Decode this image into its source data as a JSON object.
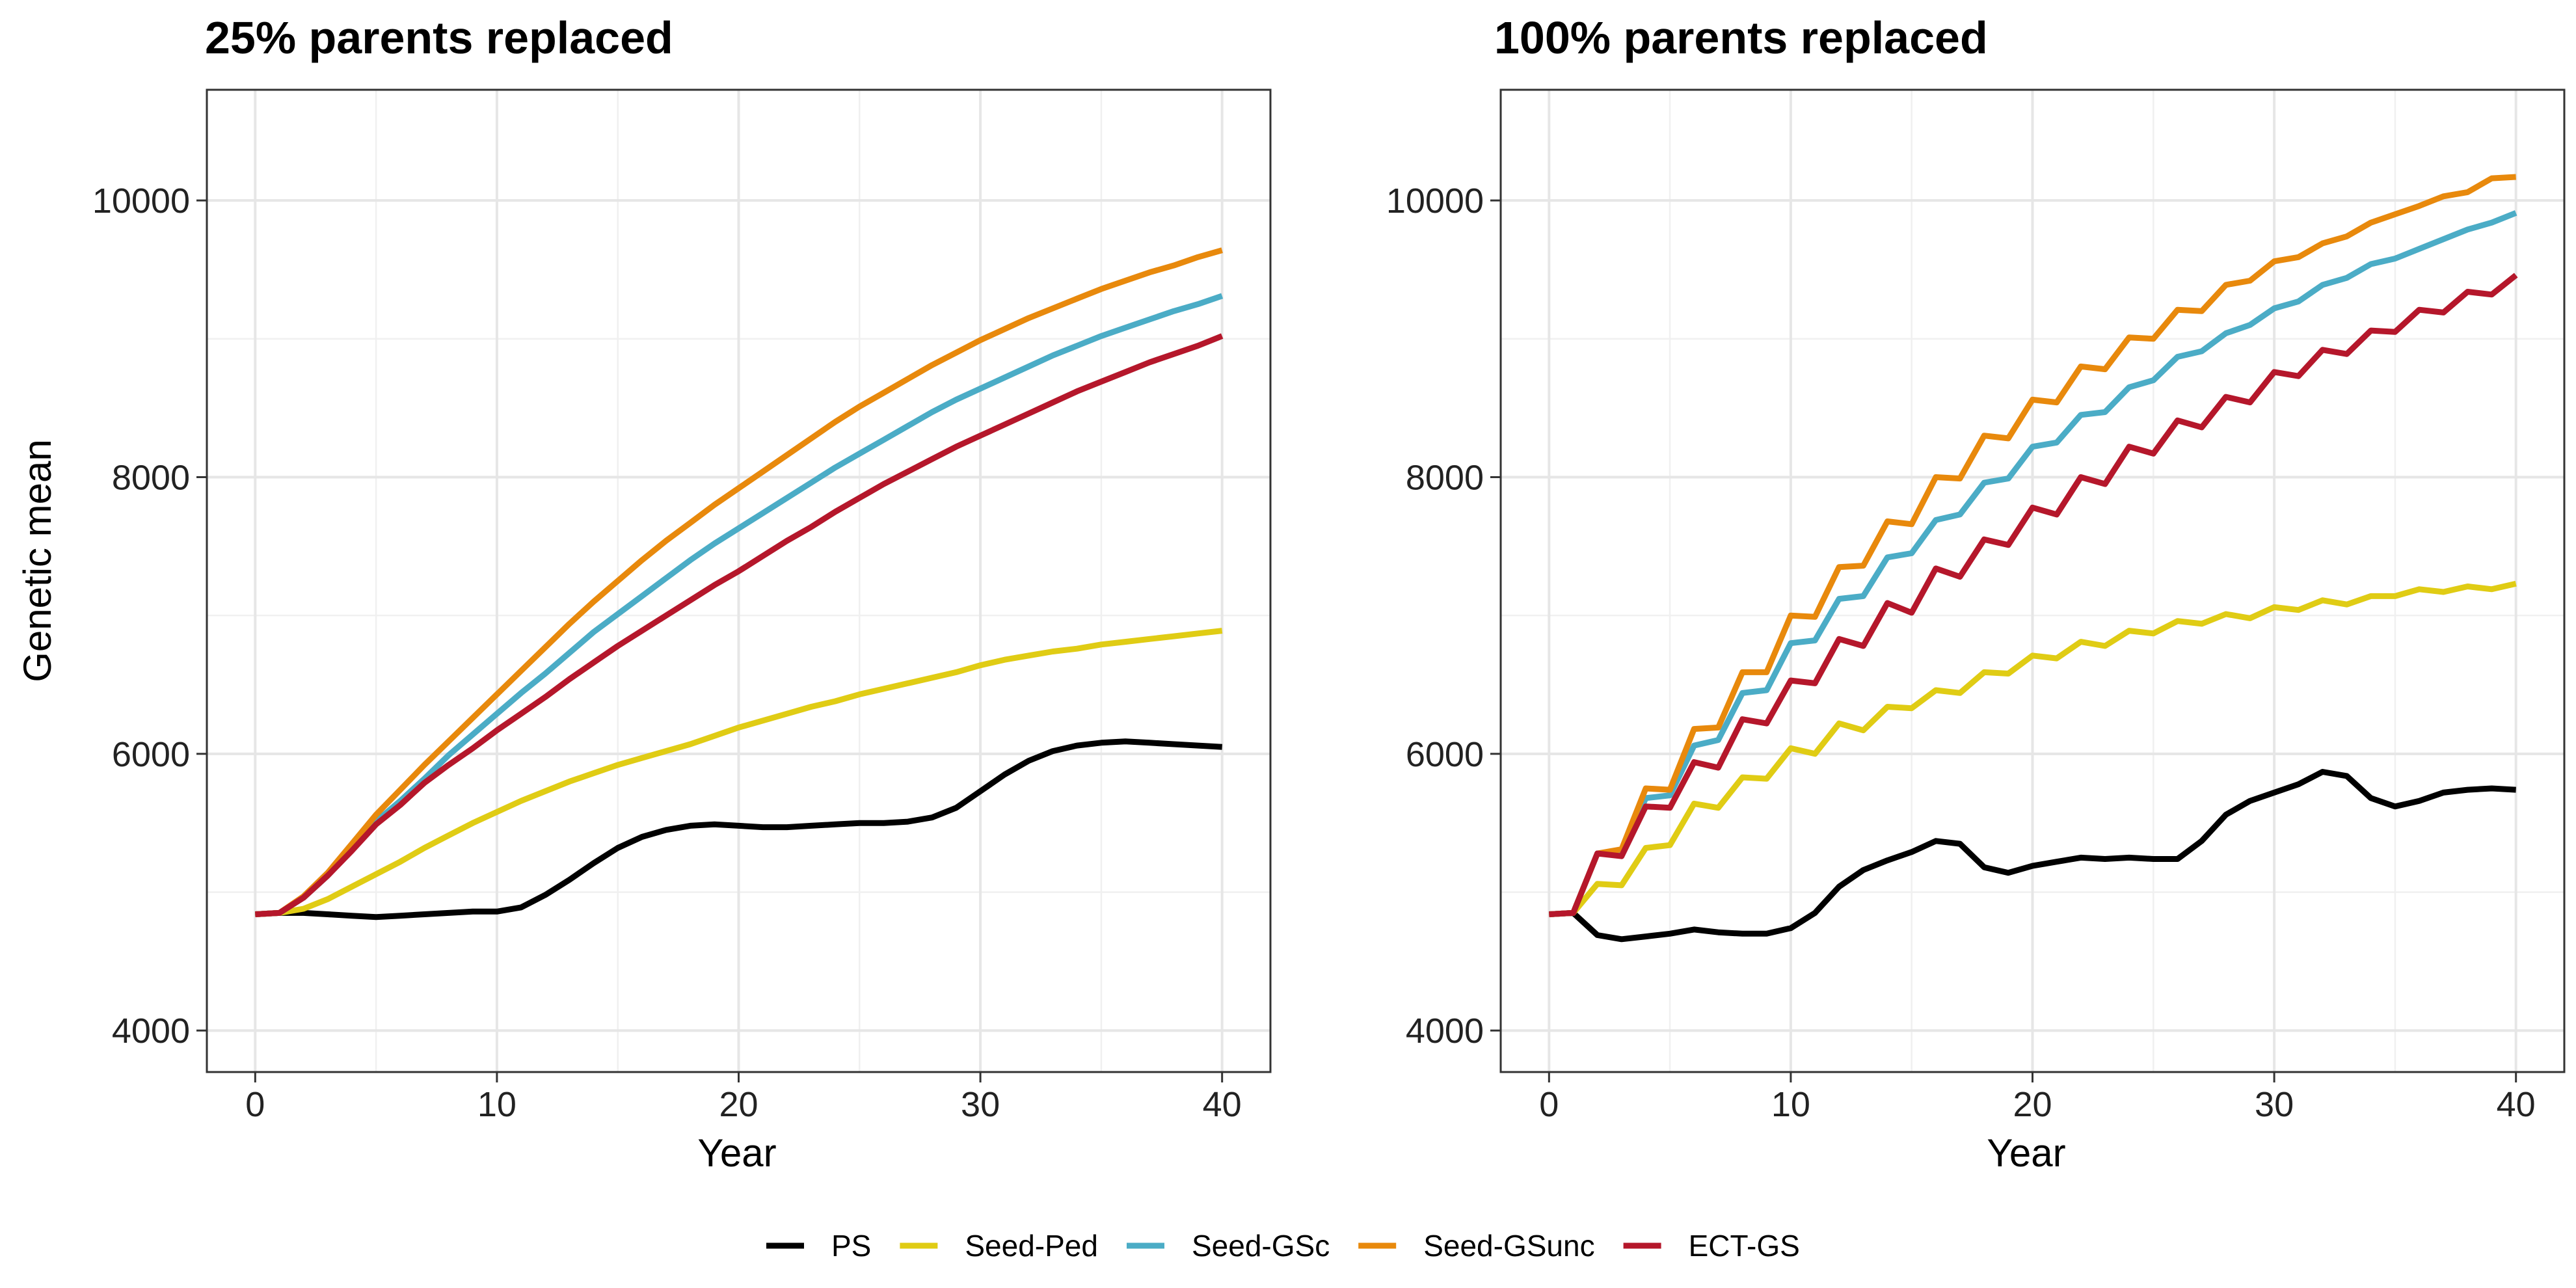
{
  "chart_data": [
    {
      "type": "line",
      "title": "25% parents replaced",
      "xlabel": "Year",
      "ylabel": "Genetic mean",
      "xlim": [
        -2,
        42
      ],
      "ylim": [
        3700,
        10800
      ],
      "xticks": [
        0,
        10,
        20,
        30,
        40
      ],
      "yticks": [
        4000,
        6000,
        8000,
        10000
      ],
      "grid": true,
      "legend": "bottom",
      "series": [
        {
          "name": "PS",
          "color": "#000000",
          "x": [
            0,
            1,
            2,
            3,
            4,
            5,
            6,
            7,
            8,
            9,
            10,
            11,
            12,
            13,
            14,
            15,
            16,
            17,
            18,
            19,
            20,
            21,
            22,
            23,
            24,
            25,
            26,
            27,
            28,
            29,
            30,
            31,
            32,
            33,
            34,
            35,
            36,
            37,
            38,
            39,
            40
          ],
          "values": [
            4840,
            4850,
            4850,
            4840,
            4830,
            4820,
            4830,
            4840,
            4850,
            4860,
            4860,
            4890,
            4980,
            5090,
            5210,
            5320,
            5400,
            5450,
            5480,
            5490,
            5480,
            5470,
            5470,
            5480,
            5490,
            5500,
            5500,
            5510,
            5540,
            5610,
            5730,
            5850,
            5950,
            6020,
            6060,
            6080,
            6090,
            6080,
            6070,
            6060,
            6050
          ]
        },
        {
          "name": "Seed-Ped",
          "color": "#E0CC14",
          "x": [
            0,
            1,
            2,
            3,
            4,
            5,
            6,
            7,
            8,
            9,
            10,
            11,
            12,
            13,
            14,
            15,
            16,
            17,
            18,
            19,
            20,
            21,
            22,
            23,
            24,
            25,
            26,
            27,
            28,
            29,
            30,
            31,
            32,
            33,
            34,
            35,
            36,
            37,
            38,
            39,
            40
          ],
          "values": [
            4840,
            4850,
            4880,
            4950,
            5040,
            5130,
            5220,
            5320,
            5410,
            5500,
            5580,
            5660,
            5730,
            5800,
            5860,
            5920,
            5970,
            6020,
            6070,
            6130,
            6190,
            6240,
            6290,
            6340,
            6380,
            6430,
            6470,
            6510,
            6550,
            6590,
            6640,
            6680,
            6710,
            6740,
            6760,
            6790,
            6810,
            6830,
            6850,
            6870,
            6890
          ]
        },
        {
          "name": "Seed-GSc",
          "color": "#4BACC6",
          "x": [
            0,
            1,
            2,
            3,
            4,
            5,
            6,
            7,
            8,
            9,
            10,
            11,
            12,
            13,
            14,
            15,
            16,
            17,
            18,
            19,
            20,
            21,
            22,
            23,
            24,
            25,
            26,
            27,
            28,
            29,
            30,
            31,
            32,
            33,
            34,
            35,
            36,
            37,
            38,
            39,
            40
          ],
          "values": [
            4840,
            4850,
            4960,
            5120,
            5310,
            5510,
            5660,
            5820,
            5990,
            6140,
            6290,
            6440,
            6580,
            6730,
            6880,
            7010,
            7140,
            7270,
            7400,
            7520,
            7630,
            7740,
            7850,
            7960,
            8070,
            8170,
            8270,
            8370,
            8470,
            8560,
            8640,
            8720,
            8800,
            8880,
            8950,
            9020,
            9080,
            9140,
            9200,
            9250,
            9310
          ]
        },
        {
          "name": "Seed-GSunc",
          "color": "#E8890C",
          "x": [
            0,
            1,
            2,
            3,
            4,
            5,
            6,
            7,
            8,
            9,
            10,
            11,
            12,
            13,
            14,
            15,
            16,
            17,
            18,
            19,
            20,
            21,
            22,
            23,
            24,
            25,
            26,
            27,
            28,
            29,
            30,
            31,
            32,
            33,
            34,
            35,
            36,
            37,
            38,
            39,
            40
          ],
          "values": [
            4840,
            4850,
            4970,
            5140,
            5350,
            5560,
            5740,
            5920,
            6090,
            6260,
            6430,
            6600,
            6770,
            6940,
            7100,
            7250,
            7400,
            7540,
            7670,
            7800,
            7920,
            8040,
            8160,
            8280,
            8400,
            8510,
            8610,
            8710,
            8810,
            8900,
            8990,
            9070,
            9150,
            9220,
            9290,
            9360,
            9420,
            9480,
            9530,
            9590,
            9640
          ]
        },
        {
          "name": "ECT-GS",
          "color": "#B5172B",
          "x": [
            0,
            1,
            2,
            3,
            4,
            5,
            6,
            7,
            8,
            9,
            10,
            11,
            12,
            13,
            14,
            15,
            16,
            17,
            18,
            19,
            20,
            21,
            22,
            23,
            24,
            25,
            26,
            27,
            28,
            29,
            30,
            31,
            32,
            33,
            34,
            35,
            36,
            37,
            38,
            39,
            40
          ],
          "values": [
            4840,
            4850,
            4960,
            5120,
            5300,
            5490,
            5630,
            5790,
            5920,
            6040,
            6170,
            6290,
            6410,
            6540,
            6660,
            6780,
            6890,
            7000,
            7110,
            7220,
            7320,
            7430,
            7540,
            7640,
            7750,
            7850,
            7950,
            8040,
            8130,
            8220,
            8300,
            8380,
            8460,
            8540,
            8620,
            8690,
            8760,
            8830,
            8890,
            8950,
            9020
          ]
        }
      ]
    },
    {
      "type": "line",
      "title": "100% parents replaced",
      "xlabel": "Year",
      "ylabel": "",
      "xlim": [
        -2,
        42
      ],
      "ylim": [
        3700,
        10800
      ],
      "xticks": [
        0,
        10,
        20,
        30,
        40
      ],
      "yticks": [
        4000,
        6000,
        8000,
        10000
      ],
      "grid": true,
      "legend": "bottom",
      "series": [
        {
          "name": "PS",
          "color": "#000000",
          "x": [
            0,
            1,
            2,
            3,
            4,
            5,
            6,
            7,
            8,
            9,
            10,
            11,
            12,
            13,
            14,
            15,
            16,
            17,
            18,
            19,
            20,
            21,
            22,
            23,
            24,
            25,
            26,
            27,
            28,
            29,
            30,
            31,
            32,
            33,
            34,
            35,
            36,
            37,
            38,
            39,
            40
          ],
          "values": [
            4840,
            4850,
            4690,
            4660,
            4680,
            4700,
            4730,
            4710,
            4700,
            4700,
            4740,
            4850,
            5040,
            5160,
            5230,
            5290,
            5370,
            5350,
            5180,
            5140,
            5190,
            5220,
            5250,
            5240,
            5250,
            5240,
            5240,
            5370,
            5560,
            5660,
            5720,
            5780,
            5870,
            5840,
            5680,
            5620,
            5660,
            5720,
            5740,
            5750,
            5740
          ]
        },
        {
          "name": "Seed-Ped",
          "color": "#E0CC14",
          "x": [
            0,
            1,
            2,
            3,
            4,
            5,
            6,
            7,
            8,
            9,
            10,
            11,
            12,
            13,
            14,
            15,
            16,
            17,
            18,
            19,
            20,
            21,
            22,
            23,
            24,
            25,
            26,
            27,
            28,
            29,
            30,
            31,
            32,
            33,
            34,
            35,
            36,
            37,
            38,
            39,
            40
          ],
          "values": [
            4840,
            4850,
            5060,
            5050,
            5320,
            5340,
            5640,
            5610,
            5830,
            5820,
            6040,
            6000,
            6220,
            6170,
            6340,
            6330,
            6460,
            6440,
            6590,
            6580,
            6710,
            6690,
            6810,
            6780,
            6890,
            6870,
            6960,
            6940,
            7010,
            6980,
            7060,
            7040,
            7110,
            7080,
            7140,
            7140,
            7190,
            7170,
            7210,
            7190,
            7230
          ]
        },
        {
          "name": "Seed-GSc",
          "color": "#4BACC6",
          "x": [
            0,
            1,
            2,
            3,
            4,
            5,
            6,
            7,
            8,
            9,
            10,
            11,
            12,
            13,
            14,
            15,
            16,
            17,
            18,
            19,
            20,
            21,
            22,
            23,
            24,
            25,
            26,
            27,
            28,
            29,
            30,
            31,
            32,
            33,
            34,
            35,
            36,
            37,
            38,
            39,
            40
          ],
          "values": [
            4840,
            4850,
            5280,
            5270,
            5680,
            5700,
            6060,
            6100,
            6440,
            6460,
            6800,
            6820,
            7120,
            7140,
            7420,
            7450,
            7690,
            7730,
            7960,
            7990,
            8220,
            8250,
            8450,
            8470,
            8650,
            8700,
            8870,
            8910,
            9040,
            9100,
            9220,
            9270,
            9390,
            9440,
            9540,
            9580,
            9650,
            9720,
            9790,
            9840,
            9910
          ]
        },
        {
          "name": "Seed-GSunc",
          "color": "#E8890C",
          "x": [
            0,
            1,
            2,
            3,
            4,
            5,
            6,
            7,
            8,
            9,
            10,
            11,
            12,
            13,
            14,
            15,
            16,
            17,
            18,
            19,
            20,
            21,
            22,
            23,
            24,
            25,
            26,
            27,
            28,
            29,
            30,
            31,
            32,
            33,
            34,
            35,
            36,
            37,
            38,
            39,
            40
          ],
          "values": [
            4840,
            4850,
            5280,
            5310,
            5750,
            5740,
            6180,
            6190,
            6590,
            6590,
            7000,
            6990,
            7350,
            7360,
            7680,
            7660,
            8000,
            7990,
            8300,
            8280,
            8560,
            8540,
            8800,
            8780,
            9010,
            9000,
            9210,
            9200,
            9390,
            9420,
            9560,
            9590,
            9690,
            9740,
            9840,
            9900,
            9960,
            10030,
            10060,
            10160,
            10170
          ]
        },
        {
          "name": "ECT-GS",
          "color": "#B5172B",
          "x": [
            0,
            1,
            2,
            3,
            4,
            5,
            6,
            7,
            8,
            9,
            10,
            11,
            12,
            13,
            14,
            15,
            16,
            17,
            18,
            19,
            20,
            21,
            22,
            23,
            24,
            25,
            26,
            27,
            28,
            29,
            30,
            31,
            32,
            33,
            34,
            35,
            36,
            37,
            38,
            39,
            40
          ],
          "values": [
            4840,
            4850,
            5280,
            5260,
            5620,
            5610,
            5940,
            5900,
            6250,
            6220,
            6530,
            6510,
            6830,
            6780,
            7090,
            7020,
            7340,
            7280,
            7550,
            7510,
            7780,
            7730,
            8000,
            7950,
            8220,
            8170,
            8410,
            8360,
            8580,
            8540,
            8760,
            8730,
            8920,
            8890,
            9060,
            9050,
            9210,
            9190,
            9340,
            9320,
            9460
          ]
        }
      ]
    }
  ]
}
